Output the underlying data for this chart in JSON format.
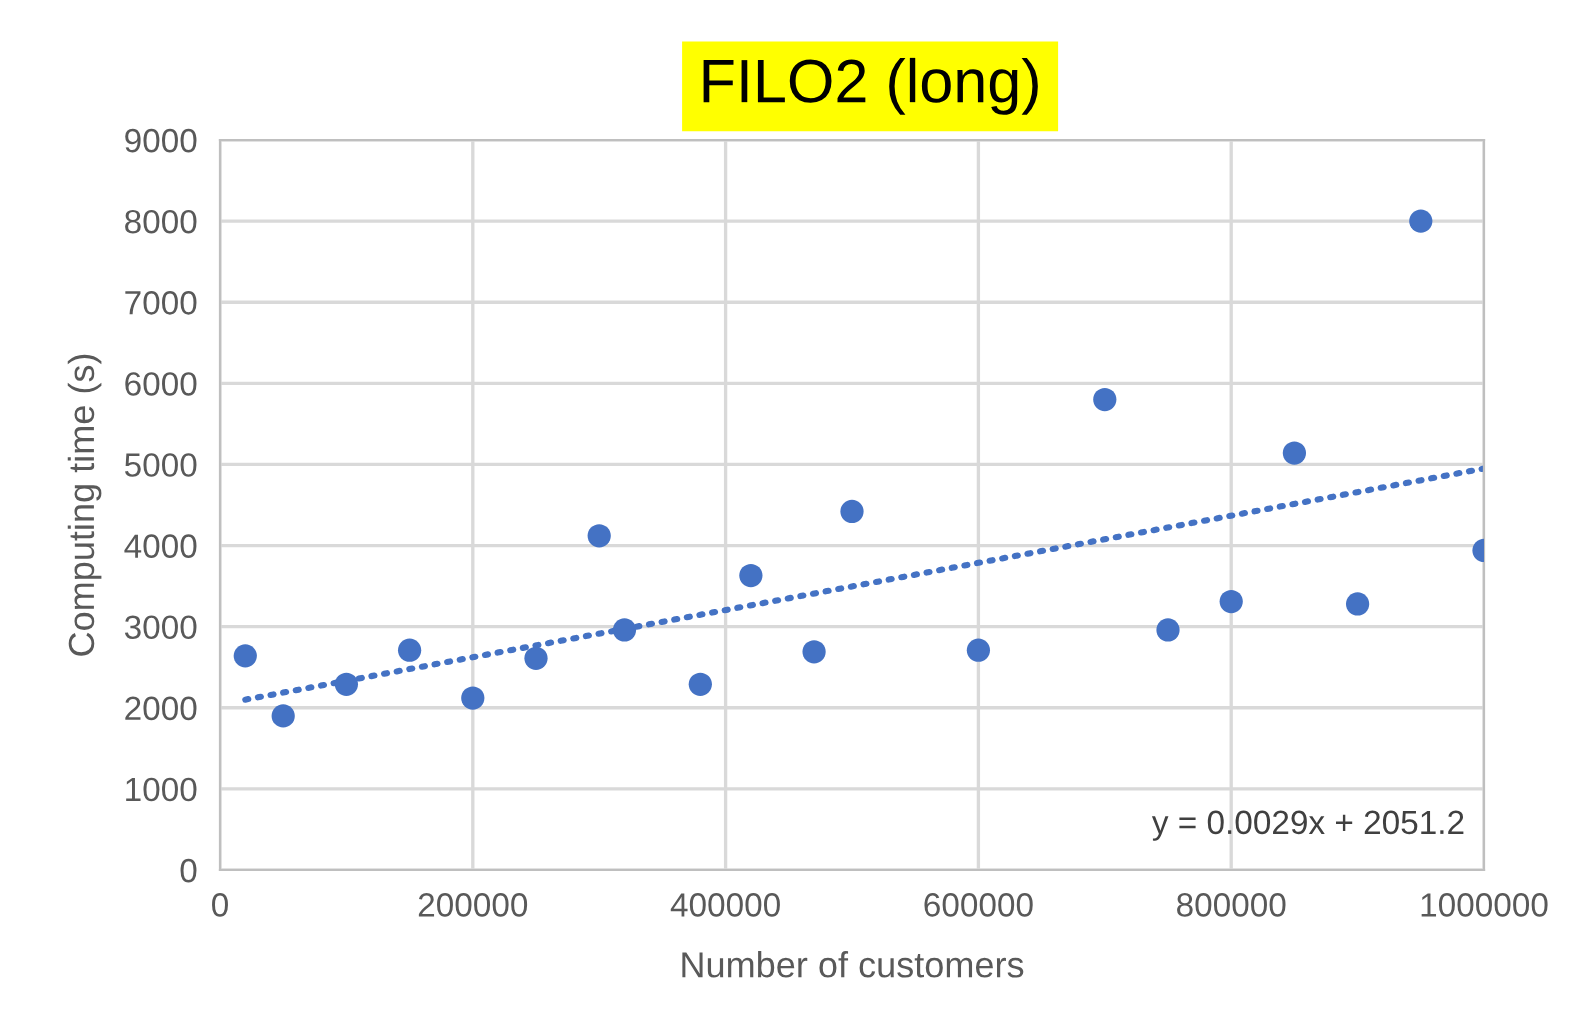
{
  "chart_data": {
    "type": "scatter",
    "title": "FILO2 (long)",
    "xlabel": "Number of customers",
    "ylabel": "Computing time (s)",
    "series": [
      {
        "color": "#4472c4",
        "marker": "circle",
        "x": [
          20000,
          50000,
          100000,
          150000,
          200000,
          250000,
          300000,
          320000,
          380000,
          420000,
          470000,
          500000,
          600000,
          700000,
          750000,
          800000,
          850000,
          900000,
          950000,
          1000000
        ],
        "values": [
          2640,
          1900,
          2290,
          2710,
          2120,
          2610,
          4120,
          2960,
          2290,
          3630,
          2690,
          4420,
          2710,
          5800,
          2960,
          3310,
          5140,
          3280,
          8000,
          3940
        ]
      },
      {
        "type": "line",
        "color": "#4472c4",
        "line_style": "dotted",
        "marker": "none",
        "x": [
          20000,
          1000000
        ],
        "values": [
          2100,
          4950
        ]
      }
    ],
    "xlim": [
      0,
      1000000
    ],
    "xticks": [
      0,
      200000,
      400000,
      600000,
      800000,
      1000000
    ],
    "ylim": [
      0,
      9000
    ],
    "yticks": [
      0,
      1000,
      2000,
      3000,
      4000,
      5000,
      6000,
      7000,
      8000,
      9000
    ],
    "grid": true,
    "legend": false,
    "annotations": [
      "y = 0.0029x + 2051.2"
    ]
  }
}
